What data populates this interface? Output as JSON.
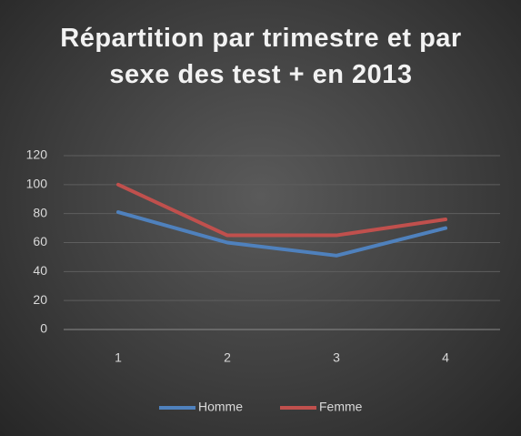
{
  "chart_data": {
    "type": "line",
    "title": "Répartition par trimestre et par sexe des test + en 2013",
    "categories": [
      "1",
      "2",
      "3",
      "4"
    ],
    "series": [
      {
        "name": "Homme",
        "color": "#4f81bd",
        "values": [
          81,
          60,
          51,
          70
        ]
      },
      {
        "name": "Femme",
        "color": "#c0504d",
        "values": [
          100,
          65,
          65,
          76
        ]
      }
    ],
    "ylim": [
      0,
      120
    ],
    "yticks": [
      0,
      20,
      40,
      60,
      80,
      100,
      120
    ],
    "grid": true,
    "legend": "bottom"
  }
}
